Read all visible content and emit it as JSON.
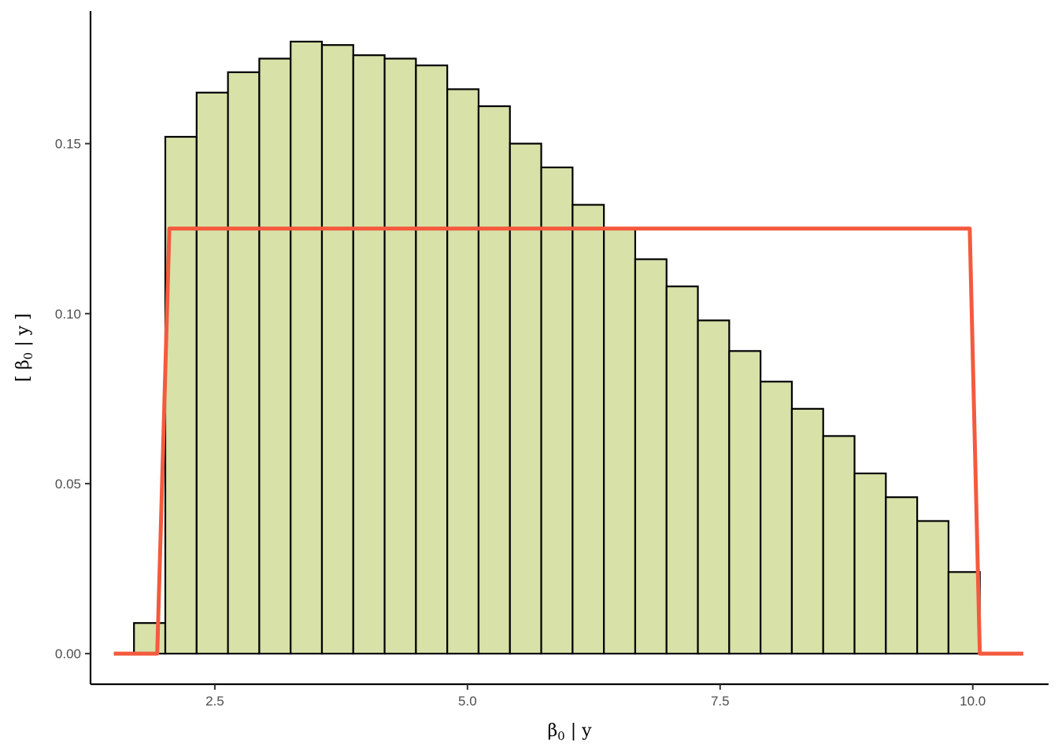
{
  "chart_data": {
    "type": "bar",
    "subtype": "histogram-with-density-line",
    "title": "",
    "xlabel": {
      "base": "β",
      "sub": "0",
      "rest": " | y"
    },
    "ylabel": {
      "pre": "[ β",
      "sub": "0",
      "rest": " | y ]"
    },
    "xlim": [
      1.27,
      10.75
    ],
    "ylim": [
      -0.009,
      0.189
    ],
    "xticks": [
      2.5,
      5.0,
      7.5,
      10.0
    ],
    "xtick_labels": [
      "2.5",
      "5.0",
      "7.5",
      "10.0"
    ],
    "yticks": [
      0.0,
      0.05,
      0.1,
      0.15
    ],
    "ytick_labels": [
      "0.00",
      "0.05",
      "0.10",
      "0.15"
    ],
    "grid": false,
    "legend": "none",
    "bin_width": 0.31,
    "bin_starts": [
      1.7,
      2.01,
      2.32,
      2.63,
      2.94,
      3.25,
      3.56,
      3.87,
      4.18,
      4.49,
      4.8,
      5.11,
      5.42,
      5.73,
      6.04,
      6.35,
      6.66,
      6.97,
      7.28,
      7.59,
      7.9,
      8.21,
      8.52,
      8.83,
      9.14,
      9.45,
      9.76
    ],
    "values": [
      0.009,
      0.152,
      0.165,
      0.171,
      0.175,
      0.18,
      0.179,
      0.176,
      0.175,
      0.173,
      0.166,
      0.161,
      0.15,
      0.143,
      0.132,
      0.125,
      0.116,
      0.108,
      0.098,
      0.089,
      0.08,
      0.072,
      0.064,
      0.053,
      0.046,
      0.039,
      0.024
    ],
    "bar_fill": "#d7e1a8",
    "bar_stroke": "#000000",
    "line_series": {
      "x": [
        1.5,
        1.93,
        2.05,
        9.97,
        10.07,
        10.5
      ],
      "y": [
        0.0,
        0.0,
        0.125,
        0.125,
        0.0,
        0.0
      ],
      "color": "#f45a3e"
    }
  }
}
